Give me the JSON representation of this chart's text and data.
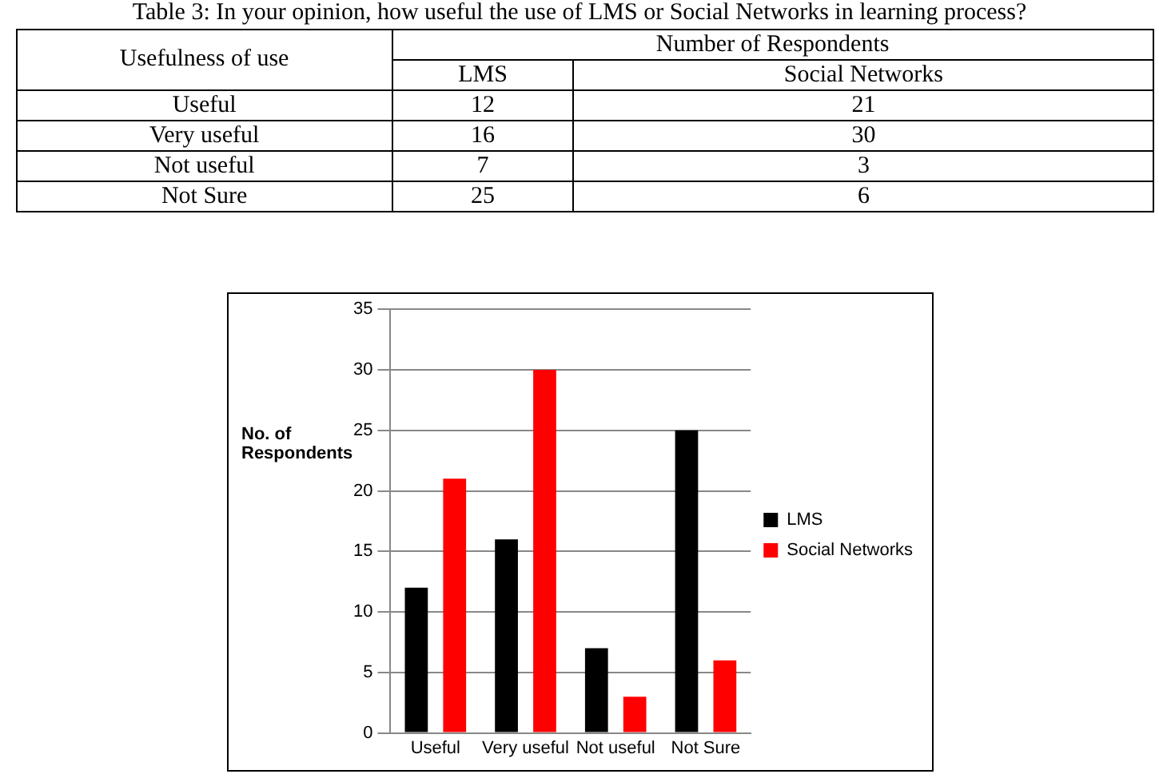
{
  "chart_data": [
    {
      "type": "other",
      "title": "Table 3: In your opinion, how useful the use of LMS or Social Networks in learning process?",
      "annotations": [
        "Usefulness of use",
        "Number of Respondents",
        "LMS",
        "Social Networks",
        "Useful",
        "12",
        "21",
        "Very useful",
        "16",
        "30",
        "Not useful",
        "7",
        "3",
        "Not Sure",
        "25",
        "6"
      ]
    },
    {
      "type": "bar",
      "ylabel": "No. of Respondents",
      "categories": [
        "Useful",
        "Very useful",
        "Not useful",
        "Not Sure"
      ],
      "series": [
        {
          "name": "LMS",
          "color": "#000000",
          "values": [
            12,
            16,
            7,
            25
          ]
        },
        {
          "name": "Social Networks",
          "color": "#ff0000",
          "values": [
            21,
            30,
            3,
            6
          ]
        }
      ],
      "ylim": [
        0,
        35
      ],
      "yticks": [
        0,
        5,
        10,
        15,
        20,
        25,
        30,
        35
      ],
      "grid": "y",
      "legend": "right"
    }
  ]
}
